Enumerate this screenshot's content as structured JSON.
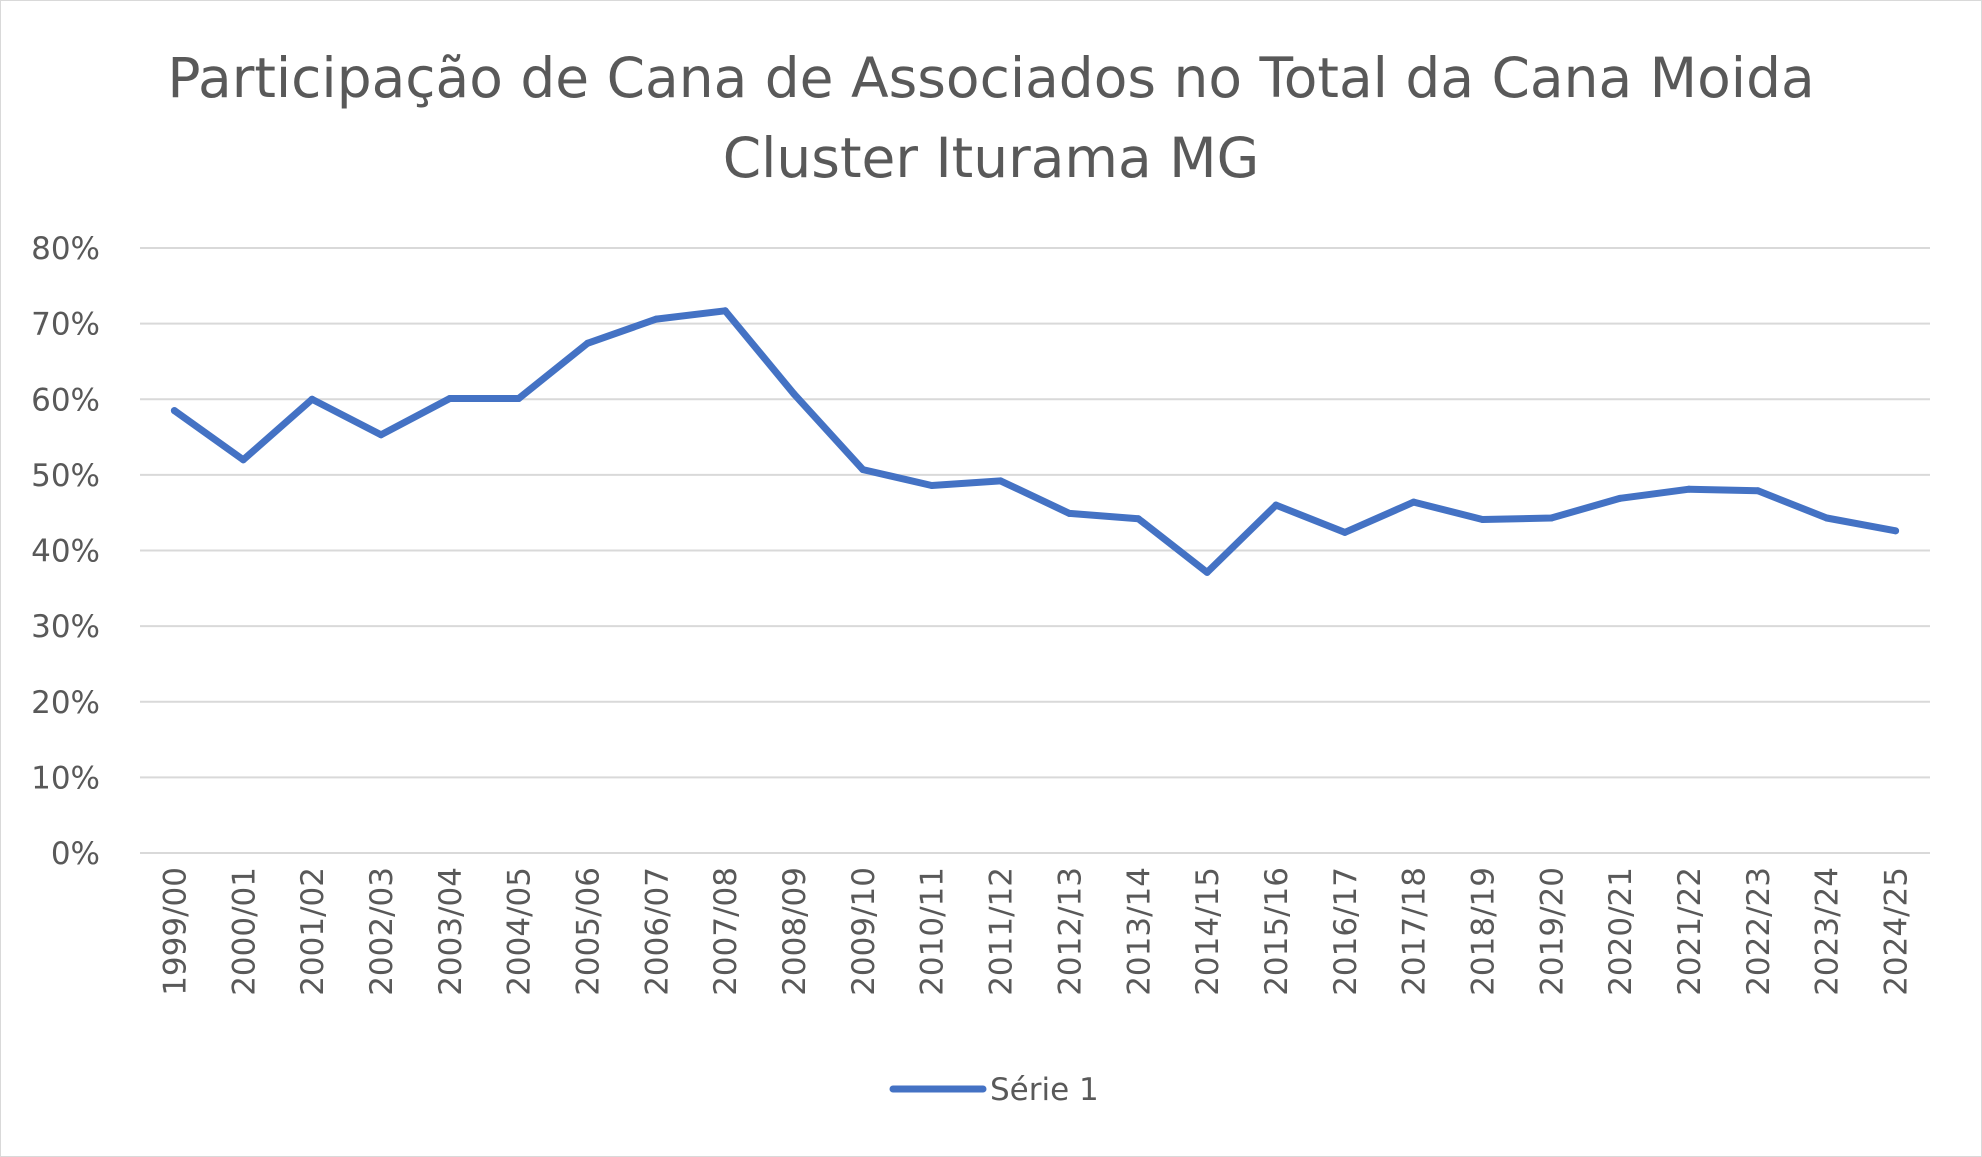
{
  "chart_data": {
    "type": "line",
    "title": "Participação de Cana de Associados no Total da Cana Moida",
    "subtitle": "Cluster Iturama MG",
    "xlabel": "",
    "ylabel": "",
    "categories": [
      "1999/00",
      "2000/01",
      "2001/02",
      "2002/03",
      "2003/04",
      "2004/05",
      "2005/06",
      "2006/07",
      "2007/08",
      "2008/09",
      "2009/10",
      "2010/11",
      "2011/12",
      "2012/13",
      "2013/14",
      "2014/15",
      "2015/16",
      "2016/17",
      "2017/18",
      "2018/19",
      "2019/20",
      "2020/21",
      "2021/22",
      "2022/23",
      "2023/24",
      "2024/25"
    ],
    "series": [
      {
        "name": "Série 1",
        "color": "#4472C4",
        "values": [
          0.585,
          0.52,
          0.6,
          0.553,
          0.601,
          0.601,
          0.674,
          0.706,
          0.717,
          0.607,
          0.507,
          0.486,
          0.492,
          0.449,
          0.442,
          0.371,
          0.46,
          0.424,
          0.464,
          0.441,
          0.443,
          0.469,
          0.481,
          0.479,
          0.443,
          0.426
        ]
      }
    ],
    "ylim": [
      0,
      0.8
    ],
    "yticks": [
      "0%",
      "10%",
      "20%",
      "30%",
      "40%",
      "50%",
      "60%",
      "70%",
      "80%"
    ],
    "grid": true,
    "legend": "bottom"
  }
}
